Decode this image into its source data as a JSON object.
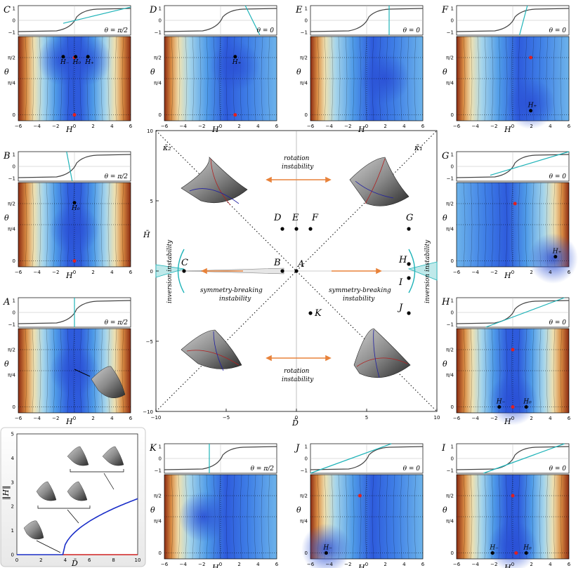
{
  "colors": {
    "cyan": "#1fb3b8",
    "orange": "#e8823a",
    "deep": "#2e5bdc",
    "warm": "#a33a1e",
    "red": "#e02020"
  },
  "center": {
    "xlabel": "D̄",
    "ylabel": "H̄",
    "xticks": [
      "−10",
      "−5",
      "0",
      "5",
      "10"
    ],
    "yticks": [
      "10",
      "5",
      "0",
      "−5",
      "−10"
    ],
    "kappa1": "κ̄₁",
    "kappa2": "κ̄₂",
    "rotation_top_1": "rotation",
    "rotation_top_2": "instability",
    "rotation_bot_1": "rotation",
    "rotation_bot_2": "instability",
    "sym_left_1": "symmetry-breaking",
    "sym_left_2": "instability",
    "sym_right_1": "symmetry-breaking",
    "sym_right_2": "instability",
    "inv_left": "inversion instability",
    "inv_right": "inversion instability",
    "points": [
      {
        "label": "A",
        "x": 0,
        "y": 0
      },
      {
        "label": "B",
        "x": -1,
        "y": 0
      },
      {
        "label": "C",
        "x": -8,
        "y": 0
      },
      {
        "label": "D",
        "x": -1,
        "y": 3
      },
      {
        "label": "E",
        "x": 0,
        "y": 3
      },
      {
        "label": "F",
        "x": 1,
        "y": 3
      },
      {
        "label": "G",
        "x": 8,
        "y": 3
      },
      {
        "label": "H",
        "x": 8,
        "y": 0.5
      },
      {
        "label": "I",
        "x": 8,
        "y": -0.5
      },
      {
        "label": "J",
        "x": 8,
        "y": -3
      },
      {
        "label": "K",
        "x": 1,
        "y": -3
      }
    ]
  },
  "panels": [
    {
      "label": "C",
      "theta": "θ = π/2",
      "markers": [
        "H₋",
        "H₀",
        "H₊"
      ]
    },
    {
      "label": "D",
      "theta": "θ = 0",
      "markers": [
        "H₊"
      ]
    },
    {
      "label": "E",
      "theta": "θ = 0",
      "markers": []
    },
    {
      "label": "F",
      "theta": "θ = 0",
      "markers": [
        "H₊"
      ]
    },
    {
      "label": "B",
      "theta": "θ = π/2",
      "markers": [
        "H₀"
      ]
    },
    {
      "label": "G",
      "theta": "θ = 0",
      "markers": [
        "H₊"
      ]
    },
    {
      "label": "A",
      "theta": "θ = π/2",
      "markers": []
    },
    {
      "label": "H",
      "theta": "θ = 0",
      "markers": [
        "H₋",
        "H₀",
        "H₊"
      ]
    },
    {
      "label": "K",
      "theta": "θ = π/2",
      "markers": []
    },
    {
      "label": "J",
      "theta": "θ = 0",
      "markers": [
        "H₋"
      ]
    },
    {
      "label": "I",
      "theta": "θ = 0",
      "markers": [
        "H₋",
        "H₀",
        "H₊"
      ]
    }
  ],
  "panel_axis": {
    "xlabel": "H",
    "ylabel": "θ",
    "xticks": [
      "−6",
      "−4",
      "−2",
      "0",
      "2",
      "4",
      "6"
    ],
    "topticks": [
      "1",
      "0",
      "−1"
    ],
    "thetaticks": [
      "π/2",
      "π/4",
      "0"
    ]
  },
  "bifurcation": {
    "xlabel": "D̄",
    "ylabel": "‖H‖",
    "xticks": [
      "0",
      "2",
      "4",
      "6",
      "8",
      "10"
    ],
    "yticks": [
      "0",
      "1",
      "2",
      "3",
      "4",
      "5"
    ]
  }
}
